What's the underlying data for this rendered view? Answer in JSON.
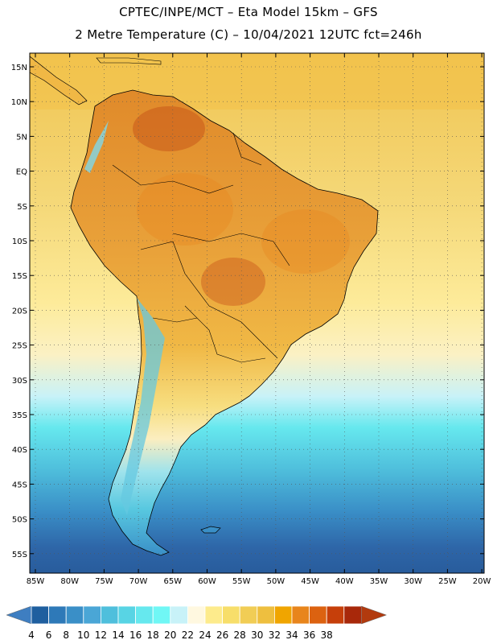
{
  "title": {
    "line1": "CPTEC/INPE/MCT –  Eta Model 15km – GFS",
    "line2": "2 Metre Temperature (C) – 10/04/2021 12UTC fct=246h"
  },
  "map": {
    "region": "South America",
    "lat_labels": [
      "15N",
      "10N",
      "5N",
      "EQ",
      "5S",
      "10S",
      "15S",
      "20S",
      "25S",
      "30S",
      "35S",
      "40S",
      "45S",
      "50S",
      "55S"
    ],
    "lon_labels": [
      "85W",
      "80W",
      "75W",
      "70W",
      "65W",
      "60W",
      "55W",
      "50W",
      "45W",
      "40W",
      "35W",
      "30W",
      "25W",
      "20W"
    ]
  },
  "colorbar": {
    "labels": [
      "4",
      "6",
      "8",
      "10",
      "12",
      "14",
      "16",
      "18",
      "20",
      "22",
      "24",
      "26",
      "28",
      "30",
      "32",
      "34",
      "36",
      "38"
    ],
    "colors": [
      "#1f5f9f",
      "#2e79b8",
      "#3a8fc7",
      "#4aa6d6",
      "#4fbfdc",
      "#58d4e4",
      "#66e8ee",
      "#70f7f5",
      "#c8f2f8",
      "#fff8e0",
      "#fdeb8c",
      "#f7de6a",
      "#f1cd55",
      "#eebf3f",
      "#f0a500",
      "#e8851c",
      "#dc6210",
      "#c63f0a",
      "#a8280a"
    ],
    "low_extend_color": "#3e7ec1",
    "high_extend_color": "#b23a0e"
  }
}
